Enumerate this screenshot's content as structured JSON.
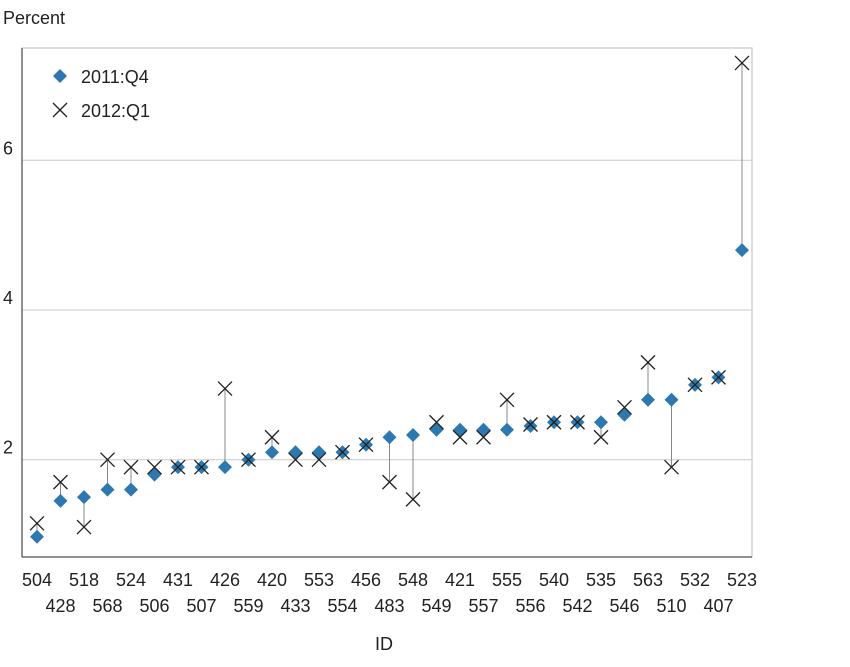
{
  "chart_data": {
    "type": "scatter",
    "ylabel": "Percent",
    "xlabel": "ID",
    "ylim": [
      0.7,
      7.5
    ],
    "yticks": [
      2,
      4,
      6
    ],
    "grid": true,
    "legend_position": "top-left",
    "categories": [
      "504",
      "428",
      "518",
      "568",
      "524",
      "506",
      "431",
      "507",
      "426",
      "559",
      "420",
      "433",
      "553",
      "554",
      "456",
      "483",
      "548",
      "549",
      "421",
      "557",
      "555",
      "556",
      "540",
      "542",
      "535",
      "546",
      "563",
      "510",
      "532",
      "407",
      "523"
    ],
    "series": [
      {
        "name": "2011:Q4",
        "marker": "diamond",
        "color": "#2e78b0",
        "values": [
          0.97,
          1.45,
          1.5,
          1.6,
          1.6,
          1.8,
          1.9,
          1.9,
          1.9,
          2.0,
          2.1,
          2.1,
          2.1,
          2.1,
          2.2,
          2.3,
          2.33,
          2.4,
          2.4,
          2.4,
          2.4,
          2.45,
          2.5,
          2.5,
          2.5,
          2.6,
          2.8,
          2.8,
          3.0,
          3.1,
          4.8
        ]
      },
      {
        "name": "2012:Q1",
        "marker": "x",
        "color": "#222222",
        "values": [
          1.15,
          1.7,
          1.1,
          2.0,
          1.9,
          1.9,
          1.9,
          1.9,
          2.95,
          2.0,
          2.3,
          2.0,
          2.0,
          2.1,
          2.2,
          1.7,
          1.47,
          2.5,
          2.3,
          2.3,
          2.8,
          2.47,
          2.5,
          2.5,
          2.3,
          2.7,
          3.3,
          1.9,
          3.0,
          3.1,
          7.3
        ]
      }
    ]
  }
}
